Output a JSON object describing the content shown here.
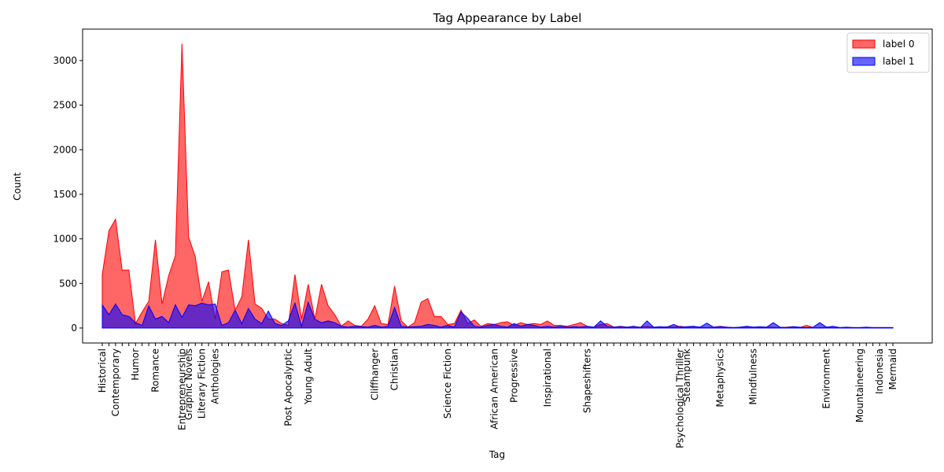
{
  "chart_data": {
    "type": "area",
    "title": "Tag Appearance by Label",
    "xlabel": "Tag",
    "ylabel": "Count",
    "categories": [
      "Historical",
      null,
      "Contemporary",
      null,
      null,
      "Humor",
      null,
      null,
      "Romance",
      null,
      null,
      null,
      "Entrepreneurship",
      "Graphic Novels",
      null,
      "Literary Fiction",
      null,
      "Anthologies",
      null,
      null,
      null,
      null,
      null,
      null,
      null,
      null,
      null,
      null,
      "Post Apocalyptic",
      null,
      null,
      "Young Adult",
      null,
      null,
      null,
      null,
      null,
      null,
      null,
      null,
      null,
      "Cliffhanger",
      null,
      null,
      "Christian",
      null,
      null,
      null,
      null,
      null,
      null,
      null,
      "Science Fiction",
      null,
      null,
      null,
      null,
      null,
      null,
      "African American",
      null,
      null,
      "Progressive",
      null,
      null,
      null,
      null,
      "Inspirational",
      null,
      null,
      null,
      null,
      null,
      "Shapeshifters",
      null,
      null,
      null,
      null,
      null,
      null,
      null,
      null,
      null,
      null,
      null,
      null,
      null,
      "Psychological Thriller",
      "Steampunk",
      null,
      null,
      null,
      null,
      "Metaphysics",
      null,
      null,
      null,
      null,
      "Mindfulness",
      null,
      null,
      null,
      null,
      null,
      null,
      null,
      null,
      null,
      null,
      "Environment",
      null,
      null,
      null,
      null,
      "Mountaineering",
      null,
      null,
      "Indonesia",
      null,
      "Mermaid"
    ],
    "series": [
      {
        "name": "label 0",
        "color": "#ff0000",
        "alpha": 0.6,
        "values": [
          600,
          1090,
          1220,
          650,
          650,
          50,
          180,
          300,
          990,
          270,
          590,
          810,
          3190,
          1020,
          800,
          300,
          520,
          100,
          630,
          650,
          200,
          350,
          990,
          270,
          220,
          100,
          100,
          50,
          30,
          600,
          100,
          490,
          100,
          490,
          250,
          150,
          20,
          80,
          30,
          20,
          100,
          250,
          50,
          40,
          470,
          80,
          10,
          60,
          290,
          330,
          130,
          130,
          40,
          50,
          200,
          50,
          90,
          20,
          50,
          40,
          60,
          70,
          30,
          60,
          40,
          50,
          40,
          80,
          30,
          30,
          20,
          40,
          60,
          20,
          10,
          40,
          50,
          10,
          20,
          10,
          15,
          10,
          20,
          10,
          5,
          15,
          10,
          20,
          10,
          15,
          10,
          5,
          10,
          20,
          10,
          5,
          10,
          15,
          10,
          5,
          10,
          10,
          5,
          10,
          15,
          5,
          30,
          5,
          5,
          10,
          5,
          5,
          5,
          5,
          5,
          5,
          5,
          5,
          5,
          5
        ]
      },
      {
        "name": "label 1",
        "color": "#0000ff",
        "alpha": 0.6,
        "values": [
          260,
          150,
          270,
          150,
          130,
          60,
          30,
          250,
          100,
          130,
          60,
          260,
          120,
          260,
          250,
          280,
          260,
          270,
          30,
          60,
          200,
          50,
          220,
          100,
          50,
          190,
          50,
          30,
          80,
          280,
          20,
          290,
          100,
          60,
          80,
          60,
          20,
          10,
          20,
          15,
          10,
          30,
          10,
          20,
          230,
          20,
          10,
          15,
          20,
          40,
          30,
          10,
          30,
          10,
          180,
          110,
          20,
          10,
          30,
          40,
          20,
          10,
          50,
          20,
          40,
          30,
          10,
          20,
          10,
          20,
          10,
          15,
          10,
          20,
          10,
          80,
          20,
          10,
          15,
          10,
          20,
          5,
          80,
          10,
          15,
          10,
          40,
          10,
          15,
          20,
          10,
          55,
          10,
          15,
          10,
          5,
          10,
          20,
          10,
          15,
          10,
          60,
          10,
          5,
          15,
          10,
          5,
          10,
          60,
          10,
          20,
          5,
          10,
          5,
          5,
          10,
          5,
          5,
          5,
          5
        ]
      }
    ],
    "ylim": [
      -168,
      3353
    ],
    "yticks": [
      0,
      500,
      1000,
      1500,
      2000,
      2500,
      3000
    ],
    "legend": "upper right"
  }
}
